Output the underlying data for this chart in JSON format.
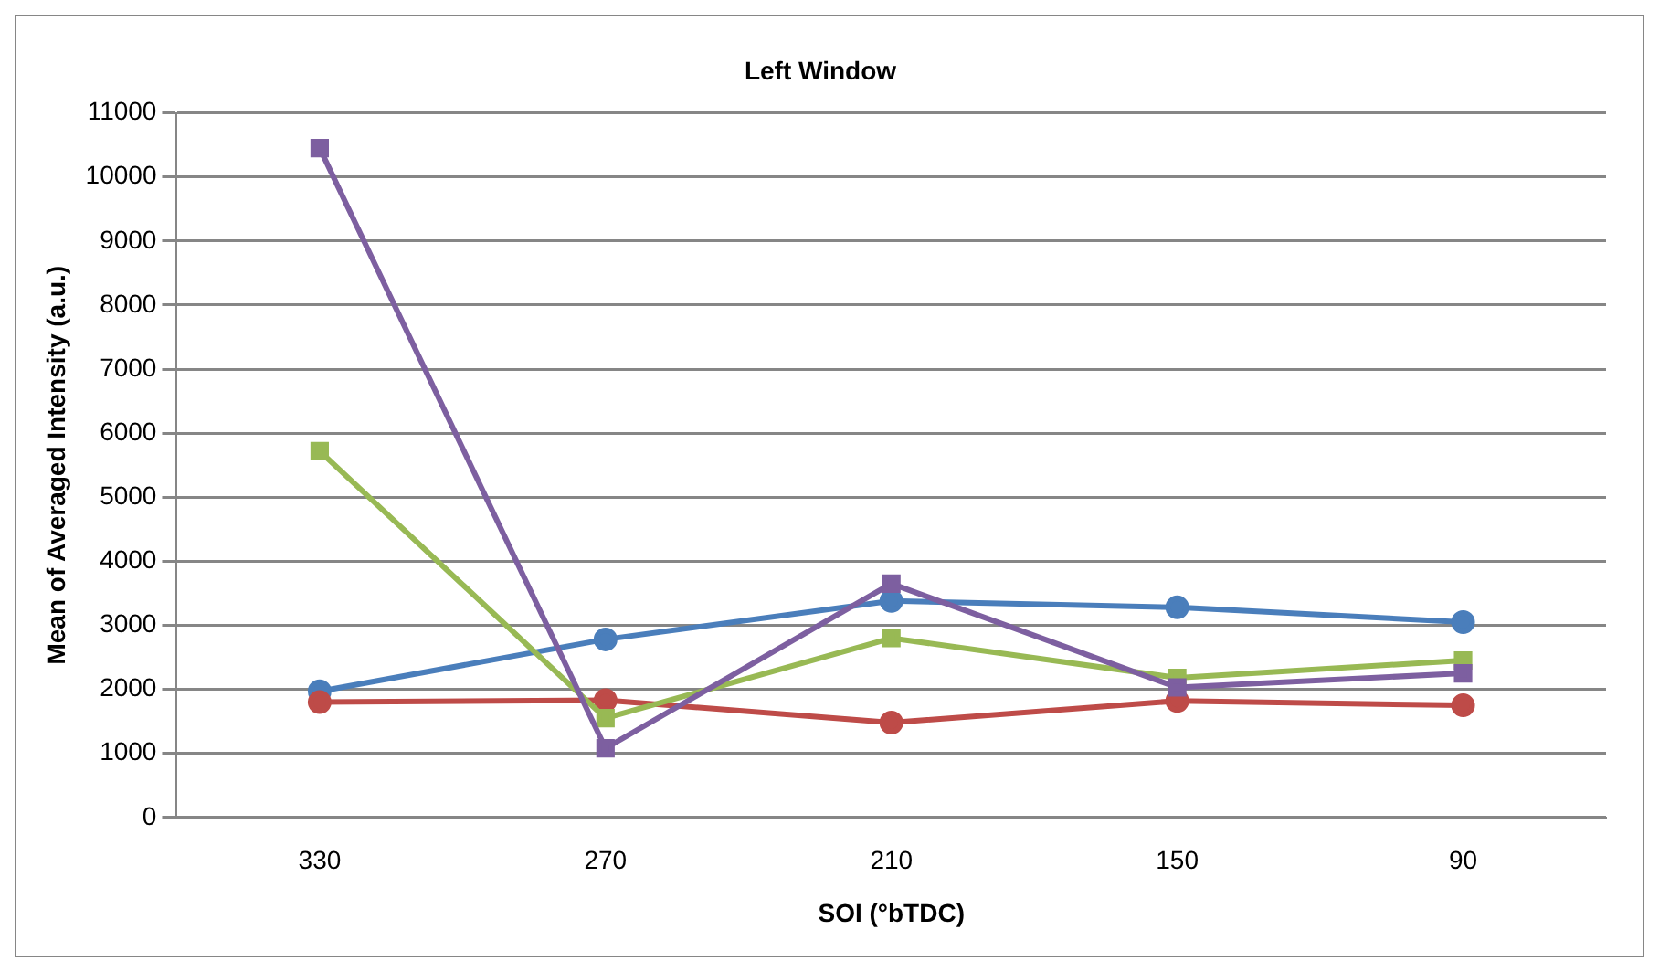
{
  "chart_data": {
    "type": "line",
    "title": "Left Window",
    "xlabel": "SOI (°bTDC)",
    "ylabel": "Mean of Averaged Intensity (a.u.)",
    "categories": [
      "330",
      "270",
      "210",
      "150",
      "90"
    ],
    "series": [
      {
        "color": "#4a7ebb",
        "marker": "circle",
        "values": [
          1970,
          2780,
          3380,
          3280,
          3050
        ]
      },
      {
        "color": "#be4b48",
        "marker": "circle",
        "values": [
          1800,
          1830,
          1480,
          1820,
          1750
        ]
      },
      {
        "color": "#98b954",
        "marker": "square",
        "values": [
          5720,
          1550,
          2800,
          2180,
          2450
        ]
      },
      {
        "color": "#7d5fa0",
        "marker": "square",
        "values": [
          10450,
          1080,
          3650,
          2030,
          2250
        ]
      }
    ],
    "ylim": [
      0,
      11000
    ],
    "yticks": [
      0,
      1000,
      2000,
      3000,
      4000,
      5000,
      6000,
      7000,
      8000,
      9000,
      10000,
      11000
    ],
    "grid": "y",
    "legend": false
  }
}
